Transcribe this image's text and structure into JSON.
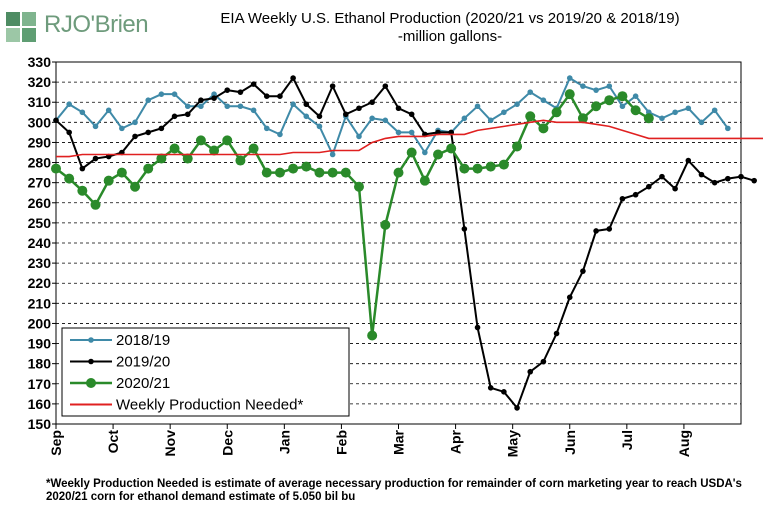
{
  "logo": {
    "text": "RJO'Brien"
  },
  "chart_data": {
    "type": "line",
    "title": "EIA Weekly U.S. Ethanol Production (2020/21 vs 2019/20 & 2018/19)",
    "subtitle": "-million  gallons-",
    "ylim": [
      150,
      330
    ],
    "yticks": [
      150,
      160,
      170,
      180,
      190,
      200,
      210,
      220,
      230,
      240,
      250,
      260,
      270,
      280,
      290,
      300,
      310,
      320,
      330
    ],
    "x_labels": [
      "Sep",
      "Oct",
      "Nov",
      "Dec",
      "Jan",
      "Feb",
      "Mar",
      "Apr",
      "May",
      "Jun",
      "Jul",
      "Aug"
    ],
    "grid": "horizontal dashed",
    "legend_position": "bottom-left",
    "series": [
      {
        "name": "2018/19",
        "color": "#3f8aa8",
        "marker": "small-circle",
        "values": [
          301,
          309,
          305,
          298,
          306,
          297,
          300,
          311,
          314,
          314,
          308,
          308,
          314,
          308,
          308,
          306,
          297,
          294,
          309,
          303,
          298,
          284,
          303,
          293,
          302,
          301,
          295,
          295,
          285,
          296,
          295,
          302,
          308,
          301,
          305,
          309,
          315,
          311,
          307,
          322,
          318,
          316,
          318,
          308,
          313,
          305,
          302,
          305,
          307,
          300,
          306,
          297
        ]
      },
      {
        "name": "2019/20",
        "color": "#000000",
        "marker": "small-circle",
        "values": [
          301,
          295,
          277,
          282,
          283,
          285,
          293,
          295,
          297,
          303,
          304,
          311,
          312,
          316,
          315,
          319,
          313,
          313,
          322,
          309,
          303,
          318,
          304,
          307,
          310,
          318,
          307,
          304,
          294,
          295,
          295,
          247,
          198,
          168,
          166,
          158,
          176,
          181,
          195,
          213,
          226,
          246,
          247,
          262,
          264,
          268,
          273,
          267,
          281,
          274,
          270,
          272,
          273,
          271
        ]
      },
      {
        "name": "2020/21",
        "color": "#2a8a2a",
        "marker": "large-circle",
        "values": [
          277,
          272,
          266,
          259,
          271,
          275,
          268,
          277,
          282,
          287,
          282,
          291,
          286,
          291,
          281,
          287,
          275,
          275,
          277,
          278,
          275,
          275,
          275,
          268,
          194,
          249,
          275,
          285,
          271,
          284,
          287,
          277,
          277,
          278,
          279,
          288,
          303,
          297,
          305,
          314,
          302,
          308,
          311,
          313,
          306,
          302
        ]
      },
      {
        "name": "Weekly Production Needed*",
        "color": "#e02020",
        "marker": "none",
        "values": [
          283,
          283,
          284,
          284,
          284,
          284,
          284,
          284,
          284,
          284,
          284,
          284,
          284,
          284,
          284,
          284,
          284,
          284,
          285,
          285,
          285,
          286,
          286,
          286,
          290,
          292,
          293,
          293,
          293,
          294,
          294,
          294,
          296,
          297,
          298,
          299,
          300,
          301,
          300,
          300,
          300,
          299,
          298,
          296,
          294,
          292,
          292,
          292,
          292,
          292,
          292,
          292,
          292,
          292,
          292
        ]
      }
    ]
  },
  "footnote": "*Weekly Production Needed is estimate of average necessary production for remainder of corn marketing year to reach USDA's 2020/21 corn for ethanol demand estimate of 5.050 bil bu"
}
